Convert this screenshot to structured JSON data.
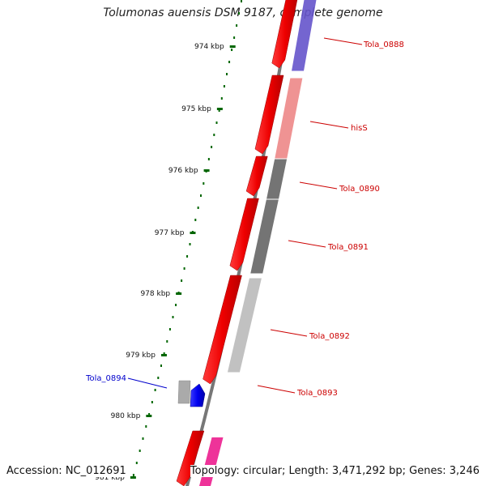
{
  "title": "Tolumonas auensis DSM 9187, complete genome",
  "accession": "Accession: NC_012691",
  "summary": "Topology: circular; Length: 3,471,292 bp; Genes: 3,246",
  "ticks": [
    "974 kbp",
    "975 kbp",
    "976 kbp",
    "977 kbp",
    "978 kbp",
    "979 kbp",
    "980 kbp",
    "981 kbp"
  ],
  "genes": [
    {
      "label": "Tola_0888",
      "strand": "reverse",
      "color": "#cc0000",
      "feature_color": "#6655cc"
    },
    {
      "label": "hisS",
      "strand": "reverse",
      "color": "#cc0000",
      "feature_color": "#ee8888"
    },
    {
      "label": "Tola_0890",
      "strand": "reverse",
      "color": "#cc0000",
      "feature_color": "#666666"
    },
    {
      "label": "Tola_0891",
      "strand": "reverse",
      "color": "#cc0000",
      "feature_color": "#666666"
    },
    {
      "label": "Tola_0892",
      "strand": "reverse",
      "color": "#cc0000",
      "feature_color": "#bbbbbb"
    },
    {
      "label": "Tola_0893",
      "strand": "reverse",
      "color": "#cc0000",
      "feature_color": "#bbbbbb"
    },
    {
      "label": "Tola_0894",
      "strand": "forward",
      "color": "#0000cc",
      "feature_color": "#0000ee"
    }
  ],
  "colors": {
    "cds": "#ee0000",
    "backbone": "#777777",
    "tick": "#006600",
    "reverse_label": "#cc0000",
    "forward_label": "#0000cc",
    "magenta_feature": "#ee3399"
  }
}
